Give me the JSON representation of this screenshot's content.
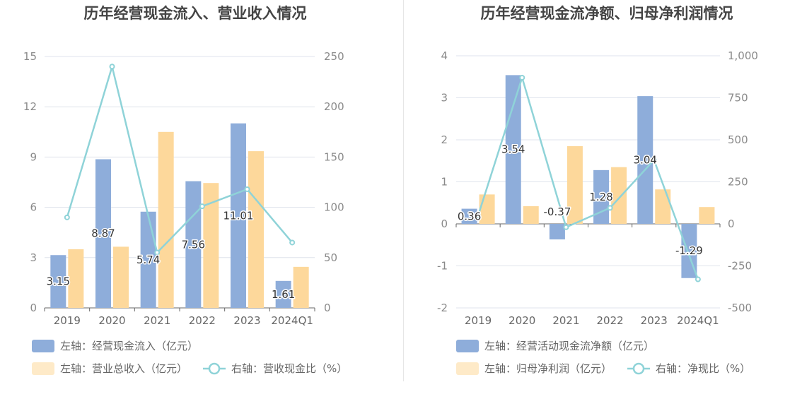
{
  "colors": {
    "bar_primary": "#8eadda",
    "bar_secondary": "#fdd89b",
    "line": "#8fd3d8",
    "grid": "#dfe3ec",
    "axis": "#666666"
  },
  "chart_data": [
    {
      "type": "bar",
      "title": "历年经营现金流入、营业收入情况",
      "categories": [
        "2019",
        "2020",
        "2021",
        "2022",
        "2023",
        "2024Q1"
      ],
      "y_left": {
        "ticks": [
          "0",
          "3",
          "6",
          "9",
          "12",
          "15"
        ],
        "ylim": [
          0,
          15
        ]
      },
      "y_right": {
        "ticks": [
          "0",
          "50",
          "100",
          "150",
          "200",
          "250"
        ],
        "ylim": [
          0,
          250
        ]
      },
      "series": [
        {
          "name": "左轴：经营现金流入（亿元）",
          "type": "bar",
          "axis": "left",
          "values": [
            3.15,
            8.87,
            5.74,
            7.56,
            11.01,
            1.61
          ],
          "labels": [
            "3.15",
            "8.87",
            "5.74",
            "7.56",
            "11.01",
            "1.61"
          ]
        },
        {
          "name": "左轴：营业总收入（亿元）",
          "type": "bar",
          "axis": "left",
          "values": [
            3.5,
            3.65,
            10.5,
            7.45,
            9.35,
            2.45
          ]
        },
        {
          "name": "右轴：营收现金比（%）",
          "type": "line",
          "axis": "right",
          "values": [
            90,
            240,
            55,
            101,
            118,
            65
          ]
        }
      ],
      "legend_rows": [
        [
          0
        ],
        [
          1,
          2
        ]
      ],
      "grid": true,
      "legend_position": "bottom-left"
    },
    {
      "type": "bar",
      "title": "历年经营现金流净额、归母净利润情况",
      "categories": [
        "2019",
        "2020",
        "2021",
        "2022",
        "2023",
        "2024Q1"
      ],
      "y_left": {
        "ticks": [
          "-2",
          "-1",
          "0",
          "1",
          "2",
          "3",
          "4"
        ],
        "ylim": [
          -2,
          4
        ]
      },
      "y_right": {
        "ticks": [
          "-500",
          "-250",
          "0",
          "250",
          "500",
          "750",
          "1,000"
        ],
        "ylim": [
          -500,
          1000
        ]
      },
      "series": [
        {
          "name": "左轴：经营活动现金流净额（亿元）",
          "type": "bar",
          "axis": "left",
          "values": [
            0.36,
            3.54,
            -0.37,
            1.28,
            3.04,
            -1.29
          ],
          "labels": [
            "0.36",
            "3.54",
            "-0.37",
            "1.28",
            "3.04",
            "-1.29"
          ]
        },
        {
          "name": "左轴：归母净利润（亿元）",
          "type": "bar",
          "axis": "left",
          "values": [
            0.7,
            0.42,
            1.85,
            1.35,
            0.82,
            0.4
          ]
        },
        {
          "name": "右轴：净现比（%）",
          "type": "line",
          "axis": "right",
          "values": [
            50,
            870,
            -20,
            95,
            380,
            -330
          ]
        }
      ],
      "legend_rows": [
        [
          0
        ],
        [
          1,
          2
        ]
      ],
      "grid": true,
      "legend_position": "bottom-left"
    }
  ]
}
